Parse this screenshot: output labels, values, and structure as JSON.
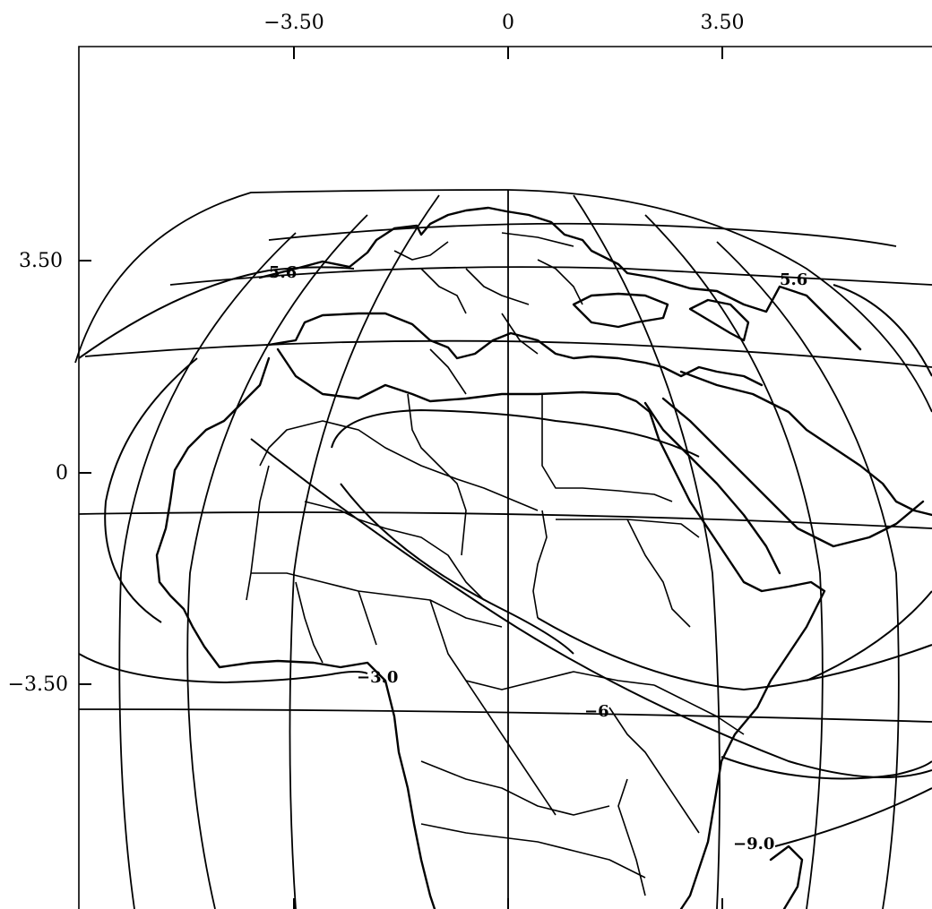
{
  "map": {
    "x_ticks": [
      "−3.50",
      "0",
      "3.50"
    ],
    "y_ticks": [
      "3.50",
      "0",
      "−3.50"
    ],
    "contour_labels": [
      "5.6",
      "−3.0",
      "−6",
      "−9.0"
    ]
  }
}
